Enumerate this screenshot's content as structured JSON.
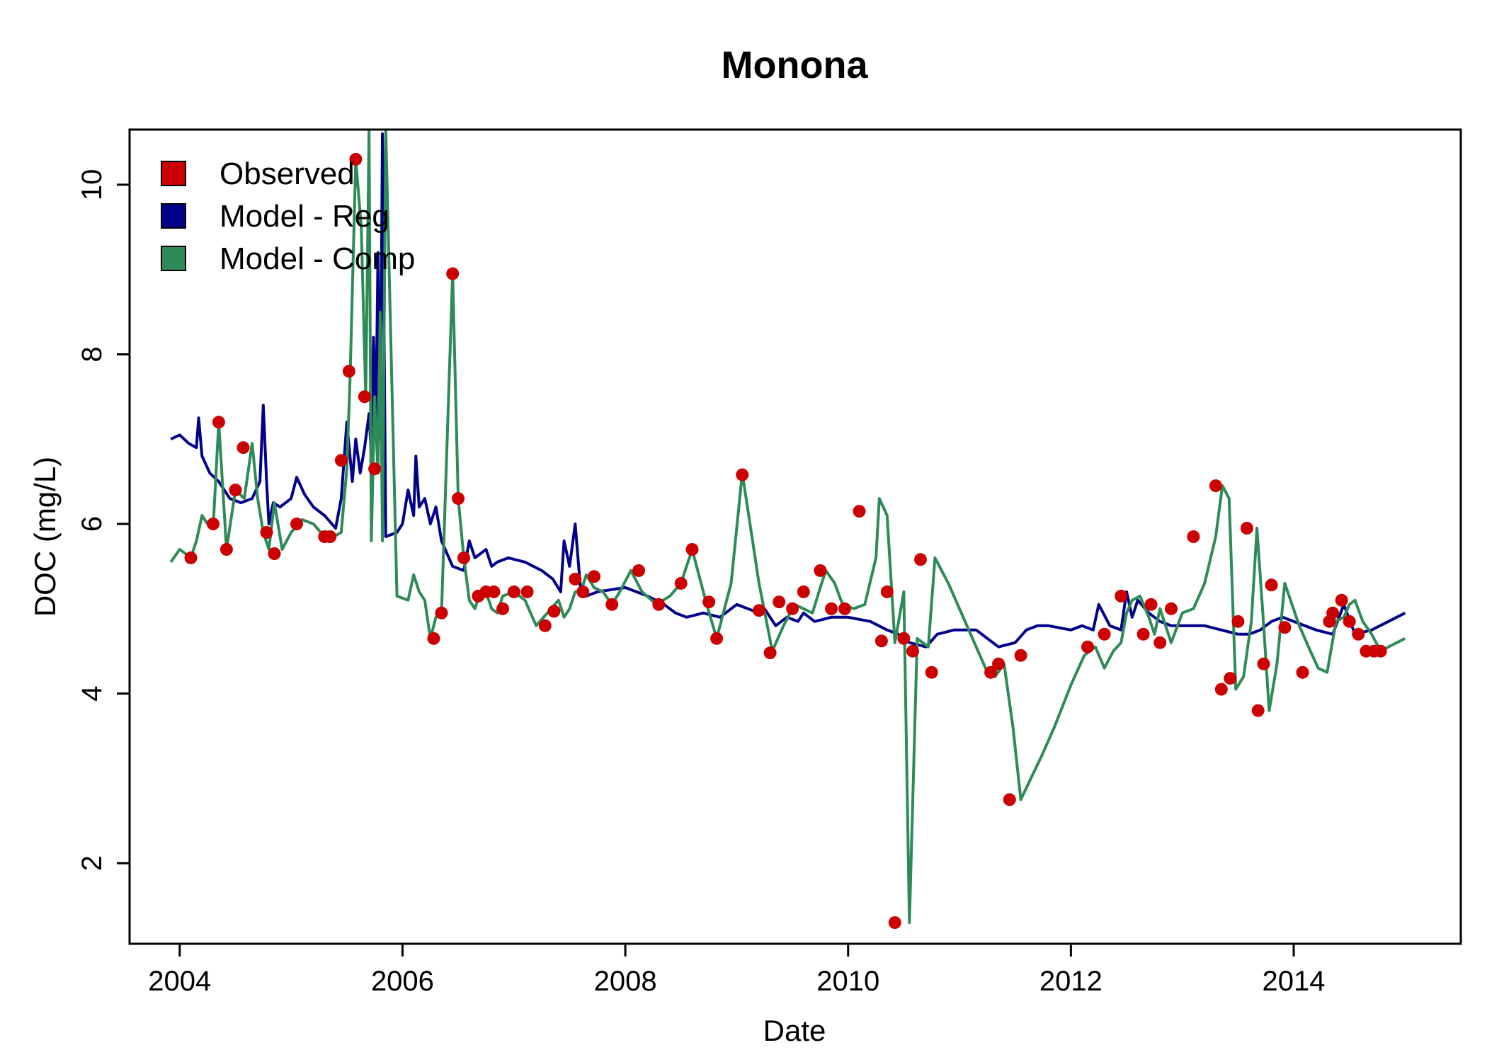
{
  "chart_data": {
    "type": "line",
    "title": "Monona",
    "xlabel": "Date",
    "ylabel": "DOC (mg/L)",
    "xlim": [
      2003.55,
      2015.5
    ],
    "ylim": [
      1.05,
      10.65
    ],
    "x_ticks": [
      2004,
      2006,
      2008,
      2010,
      2012,
      2014
    ],
    "x_tick_labels": [
      "2004",
      "2006",
      "2008",
      "2010",
      "2012",
      "2014"
    ],
    "y_ticks": [
      2,
      4,
      6,
      8,
      10
    ],
    "y_tick_labels": [
      "2",
      "4",
      "6",
      "8",
      "10"
    ],
    "grid": false,
    "legend_position": "top-left",
    "legend": [
      {
        "label": "Observed",
        "color": "#cc0000"
      },
      {
        "label": "Model - Reg",
        "color": "#00008b"
      },
      {
        "label": "Model - Comp",
        "color": "#2e8b57"
      }
    ],
    "series": [
      {
        "name": "Model - Reg",
        "kind": "line",
        "color": "#00008b",
        "x": [
          2003.92,
          2004.0,
          2004.08,
          2004.15,
          2004.17,
          2004.2,
          2004.27,
          2004.35,
          2004.45,
          2004.55,
          2004.65,
          2004.72,
          2004.75,
          2004.78,
          2004.8,
          2004.84,
          2004.9,
          2005.0,
          2005.05,
          2005.12,
          2005.2,
          2005.3,
          2005.4,
          2005.45,
          2005.5,
          2005.55,
          2005.58,
          2005.62,
          2005.66,
          2005.7,
          2005.72,
          2005.74,
          2005.76,
          2005.78,
          2005.8,
          2005.82,
          2005.85,
          2005.95,
          2006.0,
          2006.05,
          2006.1,
          2006.12,
          2006.15,
          2006.2,
          2006.25,
          2006.3,
          2006.35,
          2006.45,
          2006.55,
          2006.6,
          2006.65,
          2006.75,
          2006.8,
          2006.85,
          2006.95,
          2007.1,
          2007.25,
          2007.35,
          2007.42,
          2007.45,
          2007.5,
          2007.55,
          2007.6,
          2007.65,
          2007.75,
          2008.0,
          2008.2,
          2008.35,
          2008.45,
          2008.55,
          2008.7,
          2008.85,
          2009.0,
          2009.2,
          2009.25,
          2009.35,
          2009.45,
          2009.55,
          2009.6,
          2009.7,
          2009.85,
          2010.0,
          2010.2,
          2010.35,
          2010.45,
          2010.55,
          2010.7,
          2010.8,
          2010.95,
          2011.15,
          2011.35,
          2011.5,
          2011.6,
          2011.7,
          2011.8,
          2012.0,
          2012.1,
          2012.2,
          2012.25,
          2012.35,
          2012.45,
          2012.5,
          2012.55,
          2012.6,
          2012.7,
          2012.8,
          2012.9,
          2013.0,
          2013.2,
          2013.35,
          2013.5,
          2013.6,
          2013.7,
          2013.8,
          2013.9,
          2014.0,
          2014.2,
          2014.35,
          2014.45,
          2014.55,
          2014.7,
          2014.85,
          2015.0
        ],
        "y": [
          7.0,
          7.05,
          6.95,
          6.9,
          7.25,
          6.8,
          6.6,
          6.5,
          6.3,
          6.25,
          6.3,
          6.5,
          7.4,
          6.5,
          6.0,
          6.25,
          6.2,
          6.3,
          6.55,
          6.35,
          6.2,
          6.1,
          5.95,
          6.3,
          7.2,
          6.5,
          7.0,
          6.6,
          6.9,
          7.3,
          6.8,
          8.2,
          7.1,
          9.2,
          7.0,
          10.6,
          5.85,
          5.9,
          6.0,
          6.4,
          6.1,
          6.8,
          6.2,
          6.3,
          6.0,
          6.2,
          5.8,
          5.5,
          5.45,
          5.8,
          5.6,
          5.7,
          5.5,
          5.55,
          5.6,
          5.55,
          5.45,
          5.35,
          5.2,
          5.8,
          5.5,
          6.0,
          5.2,
          5.15,
          5.2,
          5.25,
          5.15,
          5.05,
          4.95,
          4.9,
          4.95,
          4.9,
          5.05,
          4.95,
          5.0,
          4.8,
          4.9,
          4.85,
          4.95,
          4.85,
          4.9,
          4.9,
          4.85,
          4.75,
          4.7,
          4.6,
          4.55,
          4.7,
          4.75,
          4.75,
          4.55,
          4.6,
          4.75,
          4.8,
          4.8,
          4.75,
          4.8,
          4.75,
          5.05,
          4.8,
          4.75,
          5.2,
          4.9,
          5.1,
          4.95,
          4.85,
          4.8,
          4.8,
          4.8,
          4.75,
          4.7,
          4.7,
          4.75,
          4.85,
          4.9,
          4.85,
          4.75,
          4.7,
          5.05,
          4.7,
          4.75,
          4.85,
          4.95
        ]
      },
      {
        "name": "Model - Comp",
        "kind": "line",
        "color": "#2e8b57",
        "x": [
          2003.92,
          2004.0,
          2004.1,
          2004.15,
          2004.2,
          2004.25,
          2004.3,
          2004.35,
          2004.42,
          2004.5,
          2004.58,
          2004.65,
          2004.7,
          2004.75,
          2004.8,
          2004.85,
          2004.92,
          2005.0,
          2005.1,
          2005.2,
          2005.3,
          2005.38,
          2005.45,
          2005.5,
          2005.53,
          2005.58,
          2005.63,
          2005.67,
          2005.7,
          2005.72,
          2005.75,
          2005.78,
          2005.8,
          2005.82,
          2005.85,
          2005.95,
          2006.05,
          2006.1,
          2006.15,
          2006.2,
          2006.25,
          2006.3,
          2006.35,
          2006.45,
          2006.5,
          2006.55,
          2006.6,
          2006.65,
          2006.7,
          2006.75,
          2006.8,
          2006.85,
          2006.9,
          2007.0,
          2007.1,
          2007.2,
          2007.3,
          2007.4,
          2007.45,
          2007.5,
          2007.55,
          2007.6,
          2007.65,
          2007.72,
          2007.8,
          2007.88,
          2007.95,
          2008.05,
          2008.15,
          2008.28,
          2008.4,
          2008.5,
          2008.6,
          2008.72,
          2008.82,
          2008.95,
          2009.05,
          2009.2,
          2009.32,
          2009.42,
          2009.52,
          2009.6,
          2009.68,
          2009.75,
          2009.8,
          2009.88,
          2009.95,
          2010.05,
          2010.15,
          2010.25,
          2010.28,
          2010.35,
          2010.42,
          2010.5,
          2010.55,
          2010.62,
          2010.72,
          2010.78,
          2010.9,
          2011.1,
          2011.25,
          2011.32,
          2011.4,
          2011.48,
          2011.55,
          2011.75,
          2011.85,
          2012.0,
          2012.12,
          2012.22,
          2012.3,
          2012.38,
          2012.45,
          2012.5,
          2012.55,
          2012.62,
          2012.7,
          2012.75,
          2012.8,
          2012.9,
          2013.0,
          2013.1,
          2013.2,
          2013.3,
          2013.36,
          2013.42,
          2013.48,
          2013.55,
          2013.62,
          2013.67,
          2013.72,
          2013.78,
          2013.85,
          2013.92,
          2014.05,
          2014.15,
          2014.22,
          2014.3,
          2014.38,
          2014.45,
          2014.5,
          2014.55,
          2014.62,
          2014.7,
          2014.78,
          2014.85,
          2015.0
        ],
        "y": [
          5.55,
          5.7,
          5.6,
          5.8,
          6.1,
          6.0,
          5.95,
          7.2,
          5.7,
          6.4,
          6.3,
          6.95,
          6.3,
          5.9,
          5.7,
          6.25,
          5.7,
          5.9,
          6.05,
          6.0,
          5.85,
          5.85,
          5.9,
          6.65,
          7.75,
          10.3,
          9.5,
          7.5,
          10.65,
          5.8,
          7.5,
          6.6,
          8.5,
          5.8,
          10.65,
          5.15,
          5.1,
          5.4,
          5.2,
          5.1,
          4.65,
          4.9,
          4.95,
          8.95,
          6.3,
          5.6,
          5.1,
          5.0,
          5.2,
          5.2,
          5.0,
          4.95,
          5.15,
          5.2,
          5.1,
          4.8,
          4.95,
          5.1,
          4.9,
          5.0,
          5.2,
          5.2,
          5.4,
          5.25,
          5.2,
          5.05,
          5.2,
          5.45,
          5.2,
          5.05,
          5.15,
          5.3,
          5.7,
          5.1,
          4.65,
          5.3,
          6.6,
          5.3,
          4.5,
          4.8,
          5.05,
          5.0,
          4.95,
          5.25,
          5.45,
          5.3,
          5.05,
          5.0,
          5.05,
          5.6,
          6.3,
          6.1,
          4.6,
          5.2,
          1.3,
          4.65,
          4.55,
          5.6,
          5.3,
          4.7,
          4.25,
          4.2,
          4.35,
          3.6,
          2.75,
          3.3,
          3.6,
          4.1,
          4.45,
          4.55,
          4.3,
          4.5,
          4.6,
          4.95,
          5.1,
          5.15,
          4.9,
          4.7,
          5.0,
          4.6,
          4.95,
          5.0,
          5.3,
          5.85,
          6.45,
          6.3,
          4.05,
          4.2,
          4.85,
          5.95,
          5.0,
          3.8,
          4.35,
          5.3,
          4.8,
          4.5,
          4.3,
          4.25,
          4.85,
          4.9,
          5.05,
          5.1,
          4.85,
          4.7,
          4.5,
          4.55,
          4.65
        ]
      },
      {
        "name": "Observed",
        "kind": "points",
        "color": "#cc0000",
        "x": [
          2004.1,
          2004.3,
          2004.35,
          2004.42,
          2004.5,
          2004.57,
          2004.78,
          2004.85,
          2005.05,
          2005.3,
          2005.35,
          2005.45,
          2005.52,
          2005.58,
          2005.66,
          2005.75,
          2006.28,
          2006.35,
          2006.45,
          2006.5,
          2006.55,
          2006.68,
          2006.75,
          2006.82,
          2006.9,
          2007.0,
          2007.12,
          2007.28,
          2007.36,
          2007.55,
          2007.62,
          2007.72,
          2007.88,
          2008.12,
          2008.3,
          2008.5,
          2008.6,
          2008.75,
          2008.82,
          2009.05,
          2009.2,
          2009.3,
          2009.38,
          2009.5,
          2009.6,
          2009.75,
          2009.85,
          2009.97,
          2010.1,
          2010.3,
          2010.35,
          2010.42,
          2010.5,
          2010.58,
          2010.65,
          2010.75,
          2011.28,
          2011.35,
          2011.45,
          2011.55,
          2012.15,
          2012.3,
          2012.45,
          2012.65,
          2012.72,
          2012.8,
          2012.9,
          2013.1,
          2013.3,
          2013.35,
          2013.43,
          2013.5,
          2013.58,
          2013.68,
          2013.73,
          2013.8,
          2013.92,
          2014.08,
          2014.32,
          2014.35,
          2014.43,
          2014.5,
          2014.58,
          2014.65,
          2014.72,
          2014.78
        ],
        "y": [
          5.6,
          6.0,
          7.2,
          5.7,
          6.4,
          6.9,
          5.9,
          5.65,
          6.0,
          5.85,
          5.85,
          6.75,
          7.8,
          10.3,
          7.5,
          6.65,
          4.65,
          4.95,
          8.95,
          6.3,
          5.6,
          5.15,
          5.2,
          5.2,
          5.0,
          5.2,
          5.2,
          4.8,
          4.97,
          5.35,
          5.2,
          5.38,
          5.05,
          5.45,
          5.05,
          5.3,
          5.7,
          5.08,
          4.65,
          6.58,
          4.98,
          4.48,
          5.08,
          5.0,
          5.2,
          5.45,
          5.0,
          5.0,
          6.15,
          4.62,
          5.2,
          1.3,
          4.65,
          4.5,
          5.58,
          4.25,
          4.25,
          4.35,
          2.75,
          4.45,
          4.55,
          4.7,
          5.15,
          4.7,
          5.05,
          4.6,
          5.0,
          5.85,
          6.45,
          4.05,
          4.18,
          4.85,
          5.95,
          3.8,
          4.35,
          5.28,
          4.78,
          4.25,
          4.85,
          4.95,
          5.1,
          4.85,
          4.7,
          4.5,
          4.5,
          4.5
        ]
      }
    ]
  }
}
